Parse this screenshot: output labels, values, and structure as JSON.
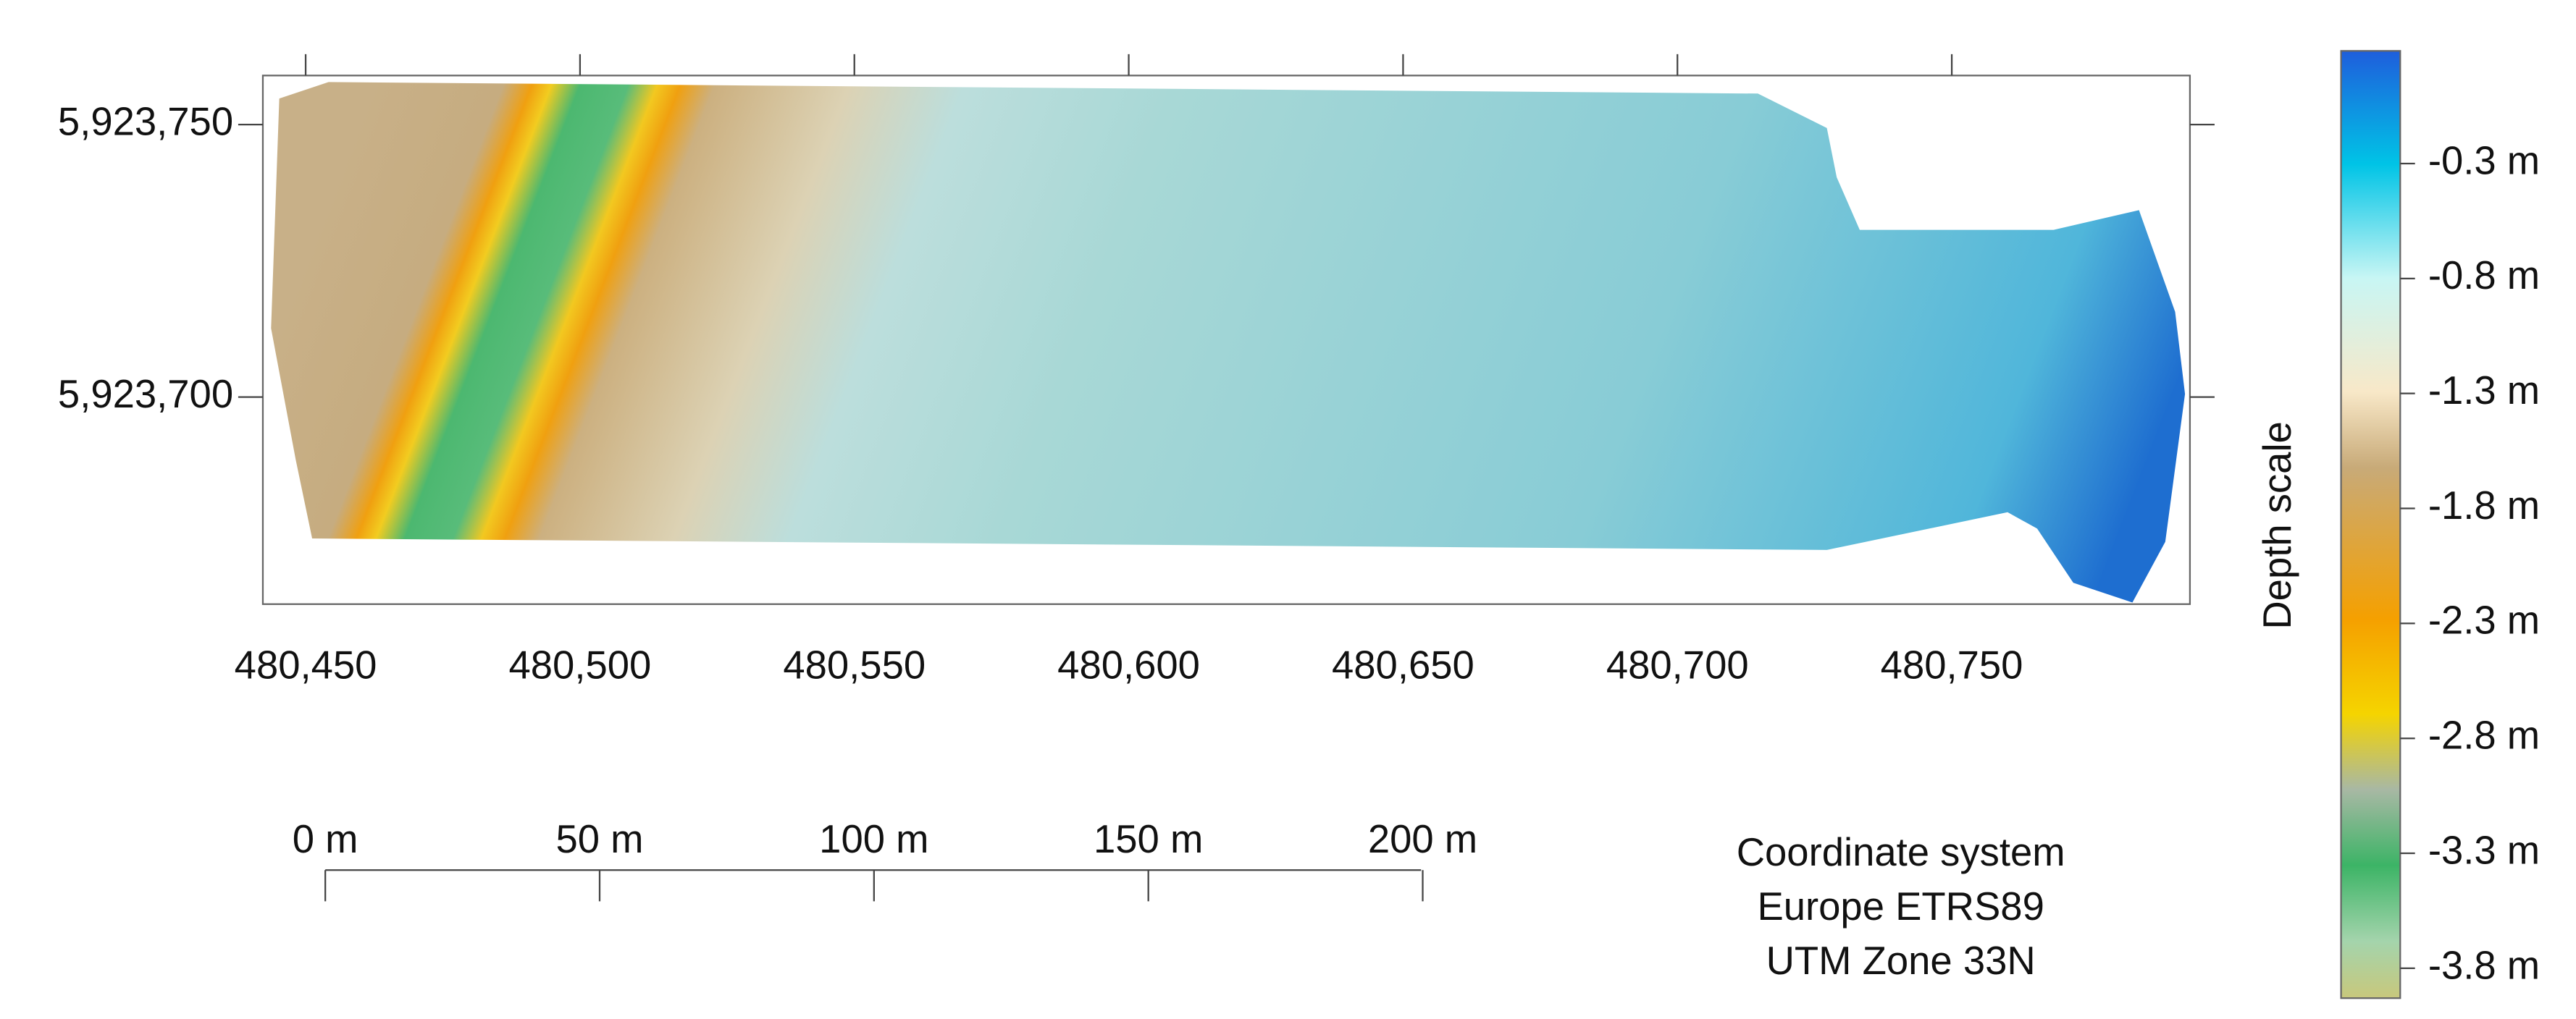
{
  "map": {
    "x_axis": {
      "lim": [
        480442.2,
        480793.4
      ],
      "ticks": [
        {
          "value": 480450,
          "label": "480,450"
        },
        {
          "value": 480500,
          "label": "480,500"
        },
        {
          "value": 480550,
          "label": "480,550"
        },
        {
          "value": 480600,
          "label": "480,600"
        },
        {
          "value": 480650,
          "label": "480,650"
        },
        {
          "value": 480700,
          "label": "480,700"
        },
        {
          "value": 480750,
          "label": "480,750"
        }
      ]
    },
    "y_axis": {
      "lim": [
        5923662,
        5923759
      ],
      "ticks": [
        {
          "value": 5923700,
          "label": "5,923,700"
        },
        {
          "value": 5923750,
          "label": "5,923,750"
        }
      ]
    },
    "scale_bar": {
      "ticks": [
        {
          "value": 0,
          "label": "0 m"
        },
        {
          "value": 50,
          "label": "50 m"
        },
        {
          "value": 100,
          "label": "100 m"
        },
        {
          "value": 150,
          "label": "150 m"
        },
        {
          "value": 200,
          "label": "200 m"
        }
      ]
    },
    "colorbar": {
      "title": "Depth scale",
      "lim": [
        -3.93,
        0.19
      ],
      "ticks": [
        {
          "value": -0.3,
          "label": "-0.3 m"
        },
        {
          "value": -0.8,
          "label": "-0.8 m"
        },
        {
          "value": -1.3,
          "label": "-1.3 m"
        },
        {
          "value": -1.8,
          "label": "-1.8 m"
        },
        {
          "value": -2.3,
          "label": "-2.3 m"
        },
        {
          "value": -2.8,
          "label": "-2.8 m"
        },
        {
          "value": -3.3,
          "label": "-3.3 m"
        },
        {
          "value": -3.8,
          "label": "-3.8 m"
        }
      ]
    },
    "coordinate_system": [
      "Coordinate system",
      "Europe ETRS89",
      "UTM Zone 33N"
    ]
  }
}
